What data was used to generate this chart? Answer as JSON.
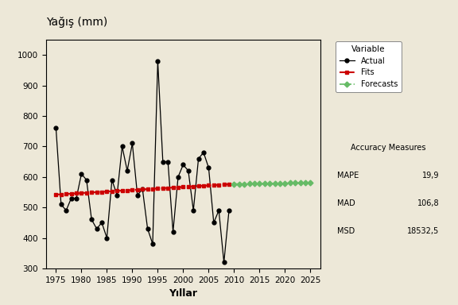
{
  "title": "Yağış (mm)",
  "xlabel": "Yıllar",
  "ylabel": "",
  "bg_color": "#ede8d8",
  "actual_years": [
    1975,
    1976,
    1977,
    1978,
    1979,
    1980,
    1981,
    1982,
    1983,
    1984,
    1985,
    1986,
    1987,
    1988,
    1989,
    1990,
    1991,
    1992,
    1993,
    1994,
    1995,
    1996,
    1997,
    1998,
    1999,
    2000,
    2001,
    2002,
    2003,
    2004,
    2005,
    2006,
    2007,
    2008,
    2009
  ],
  "actual_values": [
    760,
    510,
    490,
    530,
    530,
    610,
    590,
    460,
    430,
    450,
    400,
    590,
    540,
    700,
    620,
    710,
    540,
    560,
    430,
    380,
    980,
    650,
    650,
    420,
    600,
    640,
    620,
    490,
    660,
    680,
    630,
    450,
    490,
    320,
    490
  ],
  "fits_years": [
    1975,
    1976,
    1977,
    1978,
    1979,
    1980,
    1981,
    1982,
    1983,
    1984,
    1985,
    1986,
    1987,
    1988,
    1989,
    1990,
    1991,
    1992,
    1993,
    1994,
    1995,
    1996,
    1997,
    1998,
    1999,
    2000,
    2001,
    2002,
    2003,
    2004,
    2005,
    2006,
    2007,
    2008,
    2009
  ],
  "fits_values": [
    542,
    543,
    544,
    545,
    546,
    547,
    548,
    549,
    550,
    551,
    552,
    553,
    554,
    555,
    556,
    557,
    558,
    559,
    560,
    561,
    562,
    563,
    564,
    565,
    566,
    567,
    568,
    569,
    570,
    571,
    572,
    573,
    574,
    575,
    576
  ],
  "forecast_years": [
    2010,
    2011,
    2012,
    2013,
    2014,
    2015,
    2016,
    2017,
    2018,
    2019,
    2020,
    2021,
    2022,
    2023,
    2024,
    2025
  ],
  "forecast_values": [
    577,
    577,
    577,
    578,
    578,
    578,
    578,
    579,
    579,
    579,
    579,
    580,
    580,
    580,
    580,
    581
  ],
  "ylim": [
    300,
    1050
  ],
  "xlim": [
    1973,
    2027
  ],
  "yticks": [
    300,
    400,
    500,
    600,
    700,
    800,
    900,
    1000
  ],
  "xticks": [
    1975,
    1980,
    1985,
    1990,
    1995,
    2000,
    2005,
    2010,
    2015,
    2020,
    2025
  ],
  "actual_color": "#000000",
  "fits_color": "#cc0000",
  "forecast_color": "#66bb66",
  "legend_variable_label": "Variable",
  "legend_actual_label": "Actual",
  "legend_fits_label": "Fits",
  "legend_forecasts_label": "Forecasts",
  "acc_title": "Accuracy Measures",
  "acc_MAPE": "19,9",
  "acc_MAD": "106,8",
  "acc_MSD": "18532,5"
}
